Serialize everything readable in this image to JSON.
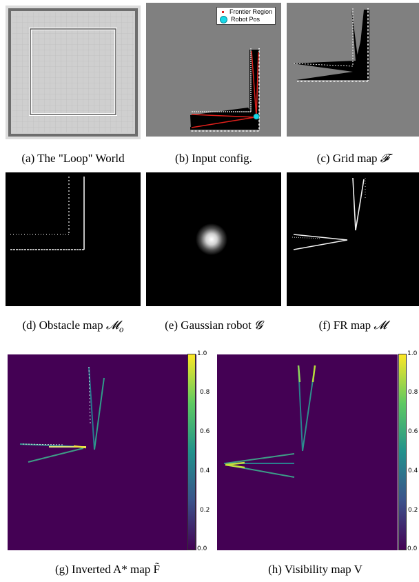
{
  "panels": {
    "a": {
      "caption": "(a) The \"Loop\" World"
    },
    "b": {
      "caption": "(b) Input config.",
      "legend": {
        "frontier_label": "Frontier Region",
        "robot_label": "Robot Pos",
        "frontier_color": "#e0201b",
        "robot_color": "#18d8e8"
      }
    },
    "c": {
      "caption_text": "(c) Grid map",
      "caption_symbol": "𝓕"
    },
    "d": {
      "caption_text": "(d) Obstacle map",
      "caption_symbol": "𝓜",
      "caption_sub": "o"
    },
    "e": {
      "caption_text": "(e) Gaussian robot",
      "caption_symbol": "𝓖"
    },
    "f": {
      "caption_text": "(f) FR map",
      "caption_symbol": "𝓜"
    },
    "g": {
      "caption": "(g) Inverted A* map F̃",
      "colorbar_ticks": [
        "1.0",
        "0.8",
        "0.6",
        "0.4",
        "0.2",
        "0.0"
      ]
    },
    "h": {
      "caption": "(h) Visibility map V",
      "colorbar_ticks": [
        "1.0",
        "0.8",
        "0.6",
        "0.4",
        "0.2",
        "0.0"
      ]
    }
  },
  "colors": {
    "gray_bg": "#7f7f7f",
    "viridis_bg": "#440154",
    "colorbar": [
      "#440154",
      "#3b528b",
      "#21918c",
      "#5ec962",
      "#fde725"
    ]
  }
}
